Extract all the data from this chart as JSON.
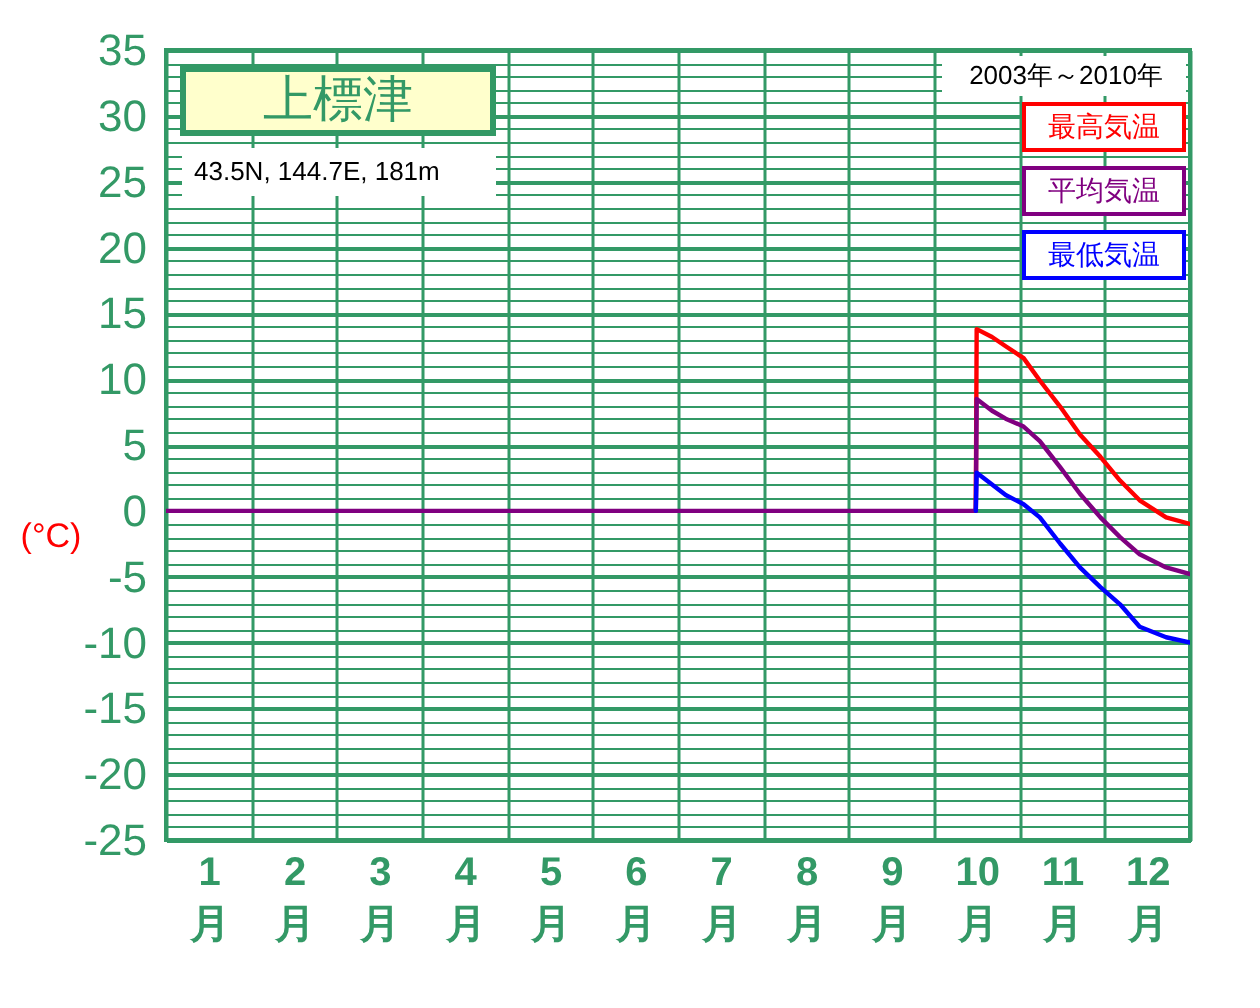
{
  "chart_data": {
    "type": "line",
    "title": "上標津",
    "subtitle": "43.5N, 144.7E, 181m",
    "ylabel": "(°C)",
    "annotations": [
      "2003年～2010年"
    ],
    "x": [
      0,
      9.49,
      9.5,
      9.68,
      9.84,
      10.05,
      10.24,
      10.48,
      10.71,
      10.95,
      11.18,
      11.41,
      11.72,
      12
    ],
    "series": [
      {
        "name": "最高気温",
        "color": "#ff0000",
        "values": [
          null,
          0,
          13.8,
          13.2,
          12.5,
          11.6,
          9.9,
          7.9,
          5.8,
          4.1,
          2.3,
          0.8,
          -0.5,
          -1.0
        ]
      },
      {
        "name": "平均気温",
        "color": "#800080",
        "values": [
          0,
          0,
          8.5,
          7.6,
          7.0,
          6.4,
          5.3,
          3.3,
          1.3,
          -0.5,
          -2.0,
          -3.3,
          -4.3,
          -4.8
        ]
      },
      {
        "name": "最低気温",
        "color": "#0000ff",
        "values": [
          null,
          0,
          2.9,
          2.0,
          1.2,
          0.5,
          -0.5,
          -2.5,
          -4.3,
          -5.8,
          -7.1,
          -8.8,
          -9.6,
          -10.0
        ]
      }
    ],
    "xlim": [
      0,
      12
    ],
    "xticks": [
      {
        "value": 0,
        "label": null
      },
      {
        "value": 0.5,
        "label": "1\n月"
      },
      {
        "value": 1,
        "label": null
      },
      {
        "value": 1.5,
        "label": "2\n月"
      },
      {
        "value": 2,
        "label": null
      },
      {
        "value": 2.5,
        "label": "3\n月"
      },
      {
        "value": 3,
        "label": null
      },
      {
        "value": 3.5,
        "label": "4\n月"
      },
      {
        "value": 4,
        "label": null
      },
      {
        "value": 4.5,
        "label": "5\n月"
      },
      {
        "value": 5,
        "label": null
      },
      {
        "value": 5.5,
        "label": "6\n月"
      },
      {
        "value": 6,
        "label": null
      },
      {
        "value": 6.5,
        "label": "7\n月"
      },
      {
        "value": 7,
        "label": null
      },
      {
        "value": 7.5,
        "label": "8\n月"
      },
      {
        "value": 8,
        "label": null
      },
      {
        "value": 8.5,
        "label": "9\n月"
      },
      {
        "value": 9,
        "label": null
      },
      {
        "value": 9.5,
        "label": "10\n月"
      },
      {
        "value": 10,
        "label": null
      },
      {
        "value": 10.5,
        "label": "11\n月"
      },
      {
        "value": 11,
        "label": null
      },
      {
        "value": 11.5,
        "label": "12\n月"
      },
      {
        "value": 12,
        "label": null
      }
    ],
    "ylim": [
      -25,
      35
    ],
    "yticks": [
      -25,
      {
        "value": -24,
        "label": null
      },
      {
        "value": -23,
        "label": null
      },
      {
        "value": -22,
        "label": null
      },
      {
        "value": -21,
        "label": null
      },
      -20,
      {
        "value": -19,
        "label": null
      },
      {
        "value": -18,
        "label": null
      },
      {
        "value": -17,
        "label": null
      },
      {
        "value": -16,
        "label": null
      },
      -15,
      {
        "value": -14,
        "label": null
      },
      {
        "value": -13,
        "label": null
      },
      {
        "value": -12,
        "label": null
      },
      {
        "value": -11,
        "label": null
      },
      -10,
      {
        "value": -9,
        "label": null
      },
      {
        "value": -8,
        "label": null
      },
      {
        "value": -7,
        "label": null
      },
      {
        "value": -6,
        "label": null
      },
      -5,
      {
        "value": -4,
        "label": null
      },
      {
        "value": -3,
        "label": null
      },
      {
        "value": -2,
        "label": null
      },
      {
        "value": -1,
        "label": null
      },
      0,
      {
        "value": 1,
        "label": null
      },
      {
        "value": 2,
        "label": null
      },
      {
        "value": 3,
        "label": null
      },
      {
        "value": 4,
        "label": null
      },
      5,
      {
        "value": 6,
        "label": null
      },
      {
        "value": 7,
        "label": null
      },
      {
        "value": 8,
        "label": null
      },
      {
        "value": 9,
        "label": null
      },
      10,
      {
        "value": 11,
        "label": null
      },
      {
        "value": 12,
        "label": null
      },
      {
        "value": 13,
        "label": null
      },
      {
        "value": 14,
        "label": null
      },
      15,
      {
        "value": 16,
        "label": null
      },
      {
        "value": 17,
        "label": null
      },
      {
        "value": 18,
        "label": null
      },
      {
        "value": 19,
        "label": null
      },
      20,
      {
        "value": 21,
        "label": null
      },
      {
        "value": 22,
        "label": null
      },
      {
        "value": 23,
        "label": null
      },
      {
        "value": 24,
        "label": null
      },
      25,
      {
        "value": 26,
        "label": null
      },
      {
        "value": 27,
        "label": null
      },
      {
        "value": 28,
        "label": null
      },
      {
        "value": 29,
        "label": null
      },
      30,
      {
        "value": 31,
        "label": null
      },
      {
        "value": 32,
        "label": null
      },
      {
        "value": 33,
        "label": null
      },
      {
        "value": 34,
        "label": null
      },
      35
    ],
    "grid": true,
    "legend": "top right"
  }
}
